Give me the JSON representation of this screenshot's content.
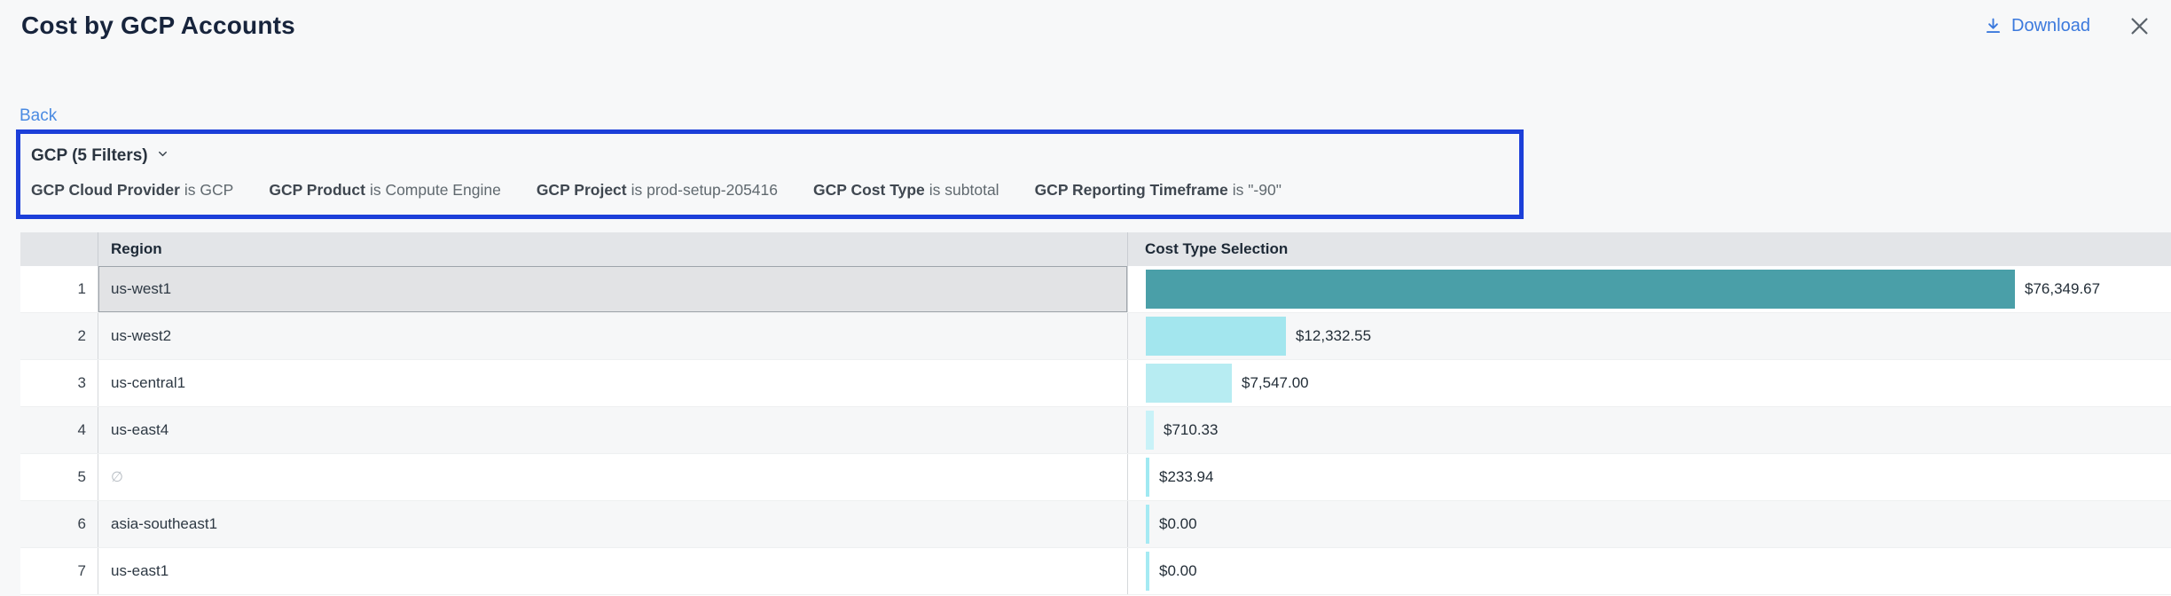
{
  "header": {
    "title": "Cost by GCP Accounts",
    "download_label": "Download"
  },
  "nav": {
    "back_label": "Back"
  },
  "filters": {
    "summary_label": "GCP (5 Filters)",
    "items": [
      {
        "name": "GCP Cloud Provider",
        "condition": "is GCP"
      },
      {
        "name": "GCP Product",
        "condition": "is Compute Engine"
      },
      {
        "name": "GCP Project",
        "condition": "is prod-setup-205416"
      },
      {
        "name": "GCP Cost Type",
        "condition": "is subtotal"
      },
      {
        "name": "GCP Reporting Timeframe",
        "condition": "is \"-90\""
      }
    ]
  },
  "table": {
    "columns": [
      "Region",
      "Cost Type Selection"
    ],
    "rows": [
      {
        "num": "1",
        "region": "us-west1",
        "value": "$76,349.67",
        "amount": 76349.67,
        "selected": true,
        "is_null": false,
        "bar_color": "#4a9fa8"
      },
      {
        "num": "2",
        "region": "us-west2",
        "value": "$12,332.55",
        "amount": 12332.55,
        "selected": false,
        "is_null": false,
        "bar_color": "#a3e6ee"
      },
      {
        "num": "3",
        "region": "us-central1",
        "value": "$7,547.00",
        "amount": 7547.0,
        "selected": false,
        "is_null": false,
        "bar_color": "#b7ecf2"
      },
      {
        "num": "4",
        "region": "us-east4",
        "value": "$710.33",
        "amount": 710.33,
        "selected": false,
        "is_null": false,
        "bar_color": "#c9f2f8"
      },
      {
        "num": "5",
        "region": "∅",
        "value": "$233.94",
        "amount": 233.94,
        "selected": false,
        "is_null": true,
        "bar_color": "#a0e9f2"
      },
      {
        "num": "6",
        "region": "asia-southeast1",
        "value": "$0.00",
        "amount": 0,
        "selected": false,
        "is_null": false,
        "bar_color": "#a5eaf3"
      },
      {
        "num": "7",
        "region": "us-east1",
        "value": "$0.00",
        "amount": 0,
        "selected": false,
        "is_null": false,
        "bar_color": "#a5eaf3"
      }
    ]
  },
  "colors": {
    "filter_border": "#1c3fd9",
    "link_blue": "#3b79dd",
    "back_blue": "#4a8ae2",
    "bar_max": "#4a9fa8",
    "header_bg": "#e3e5e8"
  }
}
